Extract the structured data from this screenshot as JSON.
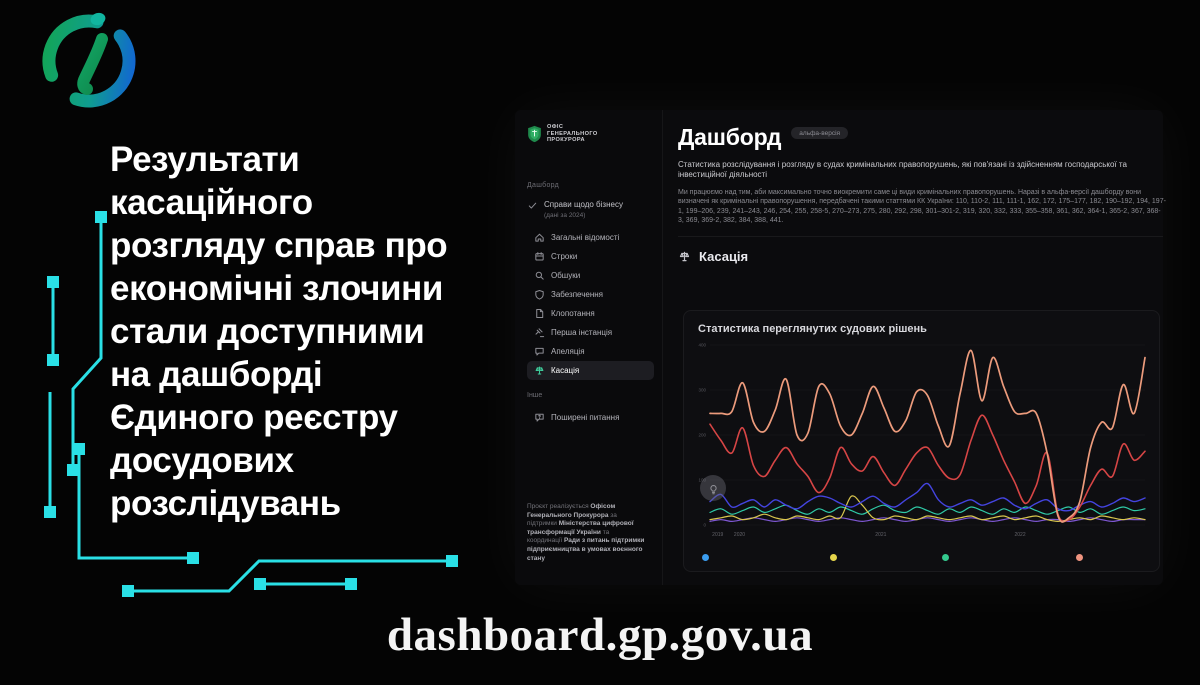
{
  "page": {
    "headline_lines": [
      "Результати",
      "касаційного",
      "розгляду справ про",
      "економічні злочини",
      "стали доступними",
      "на дашборді",
      "Єдиного реєстру",
      "досудових",
      "розслідувань"
    ],
    "url": "dashboard.gp.gov.ua"
  },
  "colors": {
    "accent_cyan": "#2ae0e6",
    "logo_green": "#14a353",
    "logo_blue": "#1263d6",
    "org_shield_green": "#2fae64",
    "active_item_bg": "#1d1d22"
  },
  "dashboard": {
    "org": {
      "name_lines": [
        "Офіс",
        "Генерального",
        "Прокурора"
      ]
    },
    "sidebar": {
      "section_label": "Дашборд",
      "business_item": {
        "label": "Справи щодо бізнесу",
        "sublabel": "(дані за 2024)",
        "icon": "check-icon"
      },
      "items": [
        {
          "id": "zahalni",
          "label": "Загальні відомості",
          "icon": "home-icon",
          "active": false
        },
        {
          "id": "stroky",
          "label": "Строки",
          "icon": "calendar-icon",
          "active": false
        },
        {
          "id": "obshuky",
          "label": "Обшуки",
          "icon": "search-icon",
          "active": false
        },
        {
          "id": "zabezpechennia",
          "label": "Забезпечення",
          "icon": "shield-icon",
          "active": false
        },
        {
          "id": "klopotannia",
          "label": "Клопотання",
          "icon": "document-icon",
          "active": false
        },
        {
          "id": "persha-instantsiia",
          "label": "Перша інстанція",
          "icon": "gavel-icon",
          "active": false
        },
        {
          "id": "apeliatsiia",
          "label": "Апеляція",
          "icon": "chat-icon",
          "active": false
        },
        {
          "id": "kasatsiia",
          "label": "Касація",
          "icon": "scales-icon",
          "active": true
        }
      ],
      "other_label": "Інше",
      "faq_item": {
        "label": "Поширені питання",
        "icon": "question-icon"
      },
      "footer_parts": [
        {
          "text": "Проєкт реалізується ",
          "bold": false
        },
        {
          "text": "Офісом Генерального Прокурора",
          "bold": true
        },
        {
          "text": " за підтримки ",
          "bold": false
        },
        {
          "text": "Міністерства цифрової трансформації України",
          "bold": true
        },
        {
          "text": " та координації ",
          "bold": false
        },
        {
          "text": "Ради з питань підтримки підприємництва в умовах воєнного стану",
          "bold": true
        }
      ]
    },
    "main": {
      "title": "Дашборд",
      "badge": "альфа-версія",
      "intro": "Статистика розслідування і розгляду в судах кримінальних правопорушень, які пов'язані із здійсненням господарської та інвестиційної діяльності",
      "note": "Ми працюємо над тим, аби максимально точно виокремити саме ці види кримінальних правопорушень. Наразі в альфа-версії дашборду вони визначені як кримінальні правопорушення, передбачені такими статтями КК України: 110, 110-2, 111, 111-1, 162, 172, 175–177, 182, 190–192, 194, 197-1, 199–206, 239, 241–243, 246, 254, 255, 258-5, 270–273, 275, 280, 292, 298, 301–301-2, 319, 320, 332, 333, 355–358, 361, 362, 364-1, 365-2, 367, 368-3, 369, 369-2, 382, 384, 388, 441.",
      "section_title": "Касація"
    }
  },
  "chart_data": {
    "type": "line",
    "title": "Статистика переглянутих судових рішень",
    "xlabel": "",
    "ylabel": "",
    "ylim": [
      0,
      100
    ],
    "grid": true,
    "legend_position": "bottom",
    "y_ticks": [
      "400",
      "300",
      "200",
      "100",
      "0"
    ],
    "x_ticks": [
      {
        "label": "2019",
        "pos": 0.005
      },
      {
        "label": "2020",
        "pos": 0.055
      },
      {
        "label": "2021",
        "pos": 0.38
      },
      {
        "label": "2022",
        "pos": 0.7
      }
    ],
    "series": [
      {
        "name": "line-purple",
        "color": "#7e57d2",
        "width": 1.2,
        "values": [
          2,
          3,
          2,
          3,
          4,
          3,
          2,
          3,
          4,
          3,
          2,
          3,
          4,
          3,
          2,
          3,
          4,
          3,
          2,
          3,
          4,
          3,
          2,
          3,
          4,
          3,
          2,
          3,
          4,
          3,
          2,
          3,
          3,
          2,
          3,
          4,
          3,
          2,
          3,
          3,
          3
        ]
      },
      {
        "name": "line-teal",
        "color": "#2fc9a7",
        "width": 1.2,
        "values": [
          7,
          9,
          6,
          8,
          10,
          7,
          9,
          11,
          8,
          6,
          9,
          7,
          10,
          8,
          6,
          9,
          11,
          8,
          7,
          10,
          8,
          6,
          9,
          7,
          10,
          8,
          6,
          9,
          7,
          10,
          8,
          6,
          8,
          10,
          7,
          9,
          6,
          8,
          10,
          8,
          9
        ]
      },
      {
        "name": "line-yellow",
        "color": "#d9c64e",
        "width": 1.2,
        "values": [
          3,
          4,
          5,
          3,
          4,
          6,
          4,
          3,
          5,
          4,
          3,
          5,
          4,
          16,
          11,
          4,
          3,
          5,
          4,
          3,
          5,
          4,
          3,
          4,
          5,
          3,
          4,
          5,
          3,
          4,
          5,
          3,
          2,
          3,
          4,
          3,
          5,
          4,
          3,
          4,
          3
        ]
      },
      {
        "name": "line-blue",
        "color": "#4444e0",
        "width": 1.4,
        "values": [
          13,
          17,
          10,
          12,
          14,
          10,
          14,
          11,
          9,
          13,
          16,
          15,
          12,
          10,
          13,
          16,
          12,
          10,
          14,
          18,
          23,
          14,
          10,
          12,
          14,
          11,
          13,
          15,
          11,
          9,
          12,
          14,
          9,
          8,
          11,
          13,
          10,
          12,
          15,
          13,
          15
        ]
      },
      {
        "name": "line-red",
        "color": "#d64545",
        "width": 1.6,
        "values": [
          56,
          47,
          40,
          54,
          33,
          27,
          36,
          43,
          34,
          27,
          18,
          26,
          43,
          34,
          30,
          38,
          29,
          22,
          31,
          40,
          43,
          33,
          26,
          28,
          47,
          61,
          50,
          36,
          24,
          12,
          22,
          40,
          6,
          3,
          10,
          22,
          31,
          27,
          45,
          36,
          41
        ]
      },
      {
        "name": "line-salmon",
        "color": "#ec9b7c",
        "width": 1.7,
        "values": [
          62,
          62,
          63,
          79,
          57,
          52,
          64,
          81,
          50,
          51,
          77,
          73,
          55,
          50,
          62,
          77,
          65,
          52,
          58,
          74,
          72,
          55,
          44,
          73,
          97,
          69,
          93,
          77,
          63,
          62,
          62,
          40,
          5,
          4,
          13,
          43,
          57,
          54,
          78,
          62,
          93
        ]
      }
    ],
    "legend": [
      {
        "name": "blue",
        "color": "#3b9df0",
        "pos": 0.01
      },
      {
        "name": "yellow",
        "color": "#e5d44b",
        "pos": 0.295
      },
      {
        "name": "green",
        "color": "#34c98e",
        "pos": 0.545
      },
      {
        "name": "salmon",
        "color": "#ef9480",
        "pos": 0.845
      }
    ]
  }
}
